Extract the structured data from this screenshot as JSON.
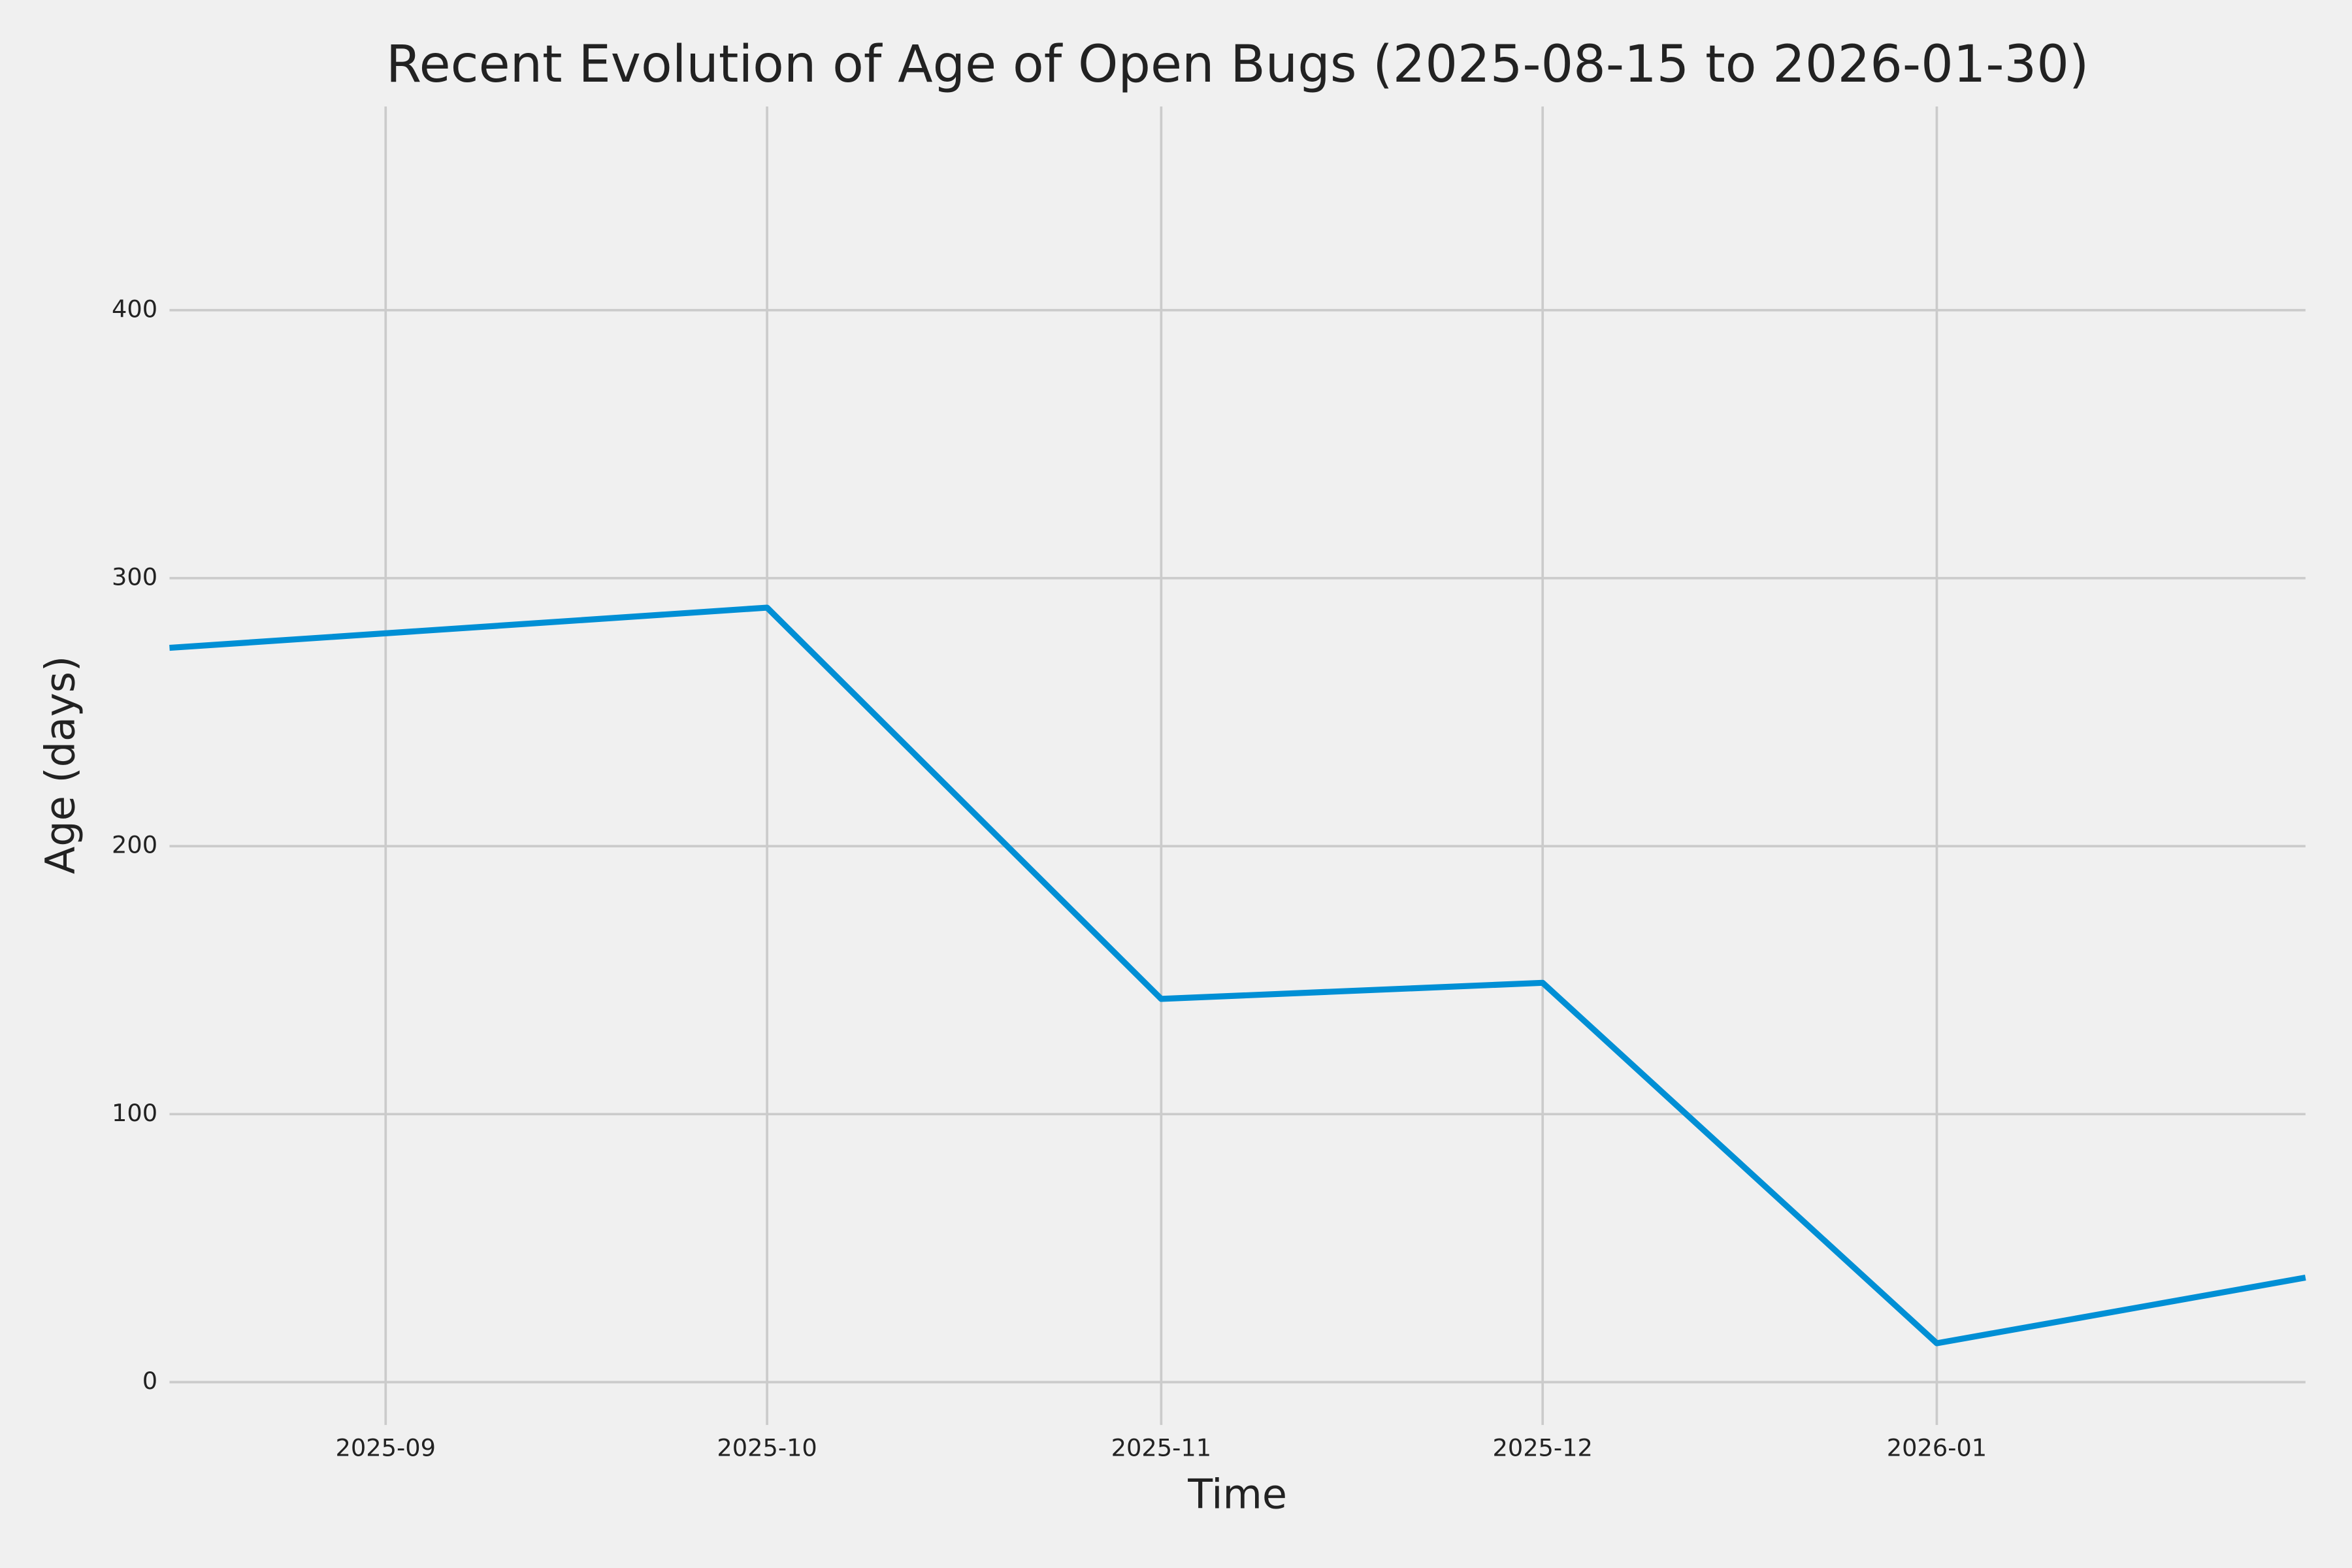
{
  "chart_data": {
    "type": "line",
    "title": "Recent Evolution of Age of Open Bugs (2025-08-15 to 2026-01-30)",
    "x_label": "Time",
    "y_label": "Age (days)",
    "x": [
      "2025-08-15",
      "2025-10-01",
      "2025-11-01",
      "2025-12-01",
      "2026-01-01",
      "2026-01-30"
    ],
    "series": [
      {
        "name": "Age",
        "color": "#008fd5",
        "values": [
          274,
          289,
          143,
          149,
          14.5,
          39
        ]
      }
    ],
    "xlim": [
      "2025-08-15",
      "2026-01-30"
    ],
    "xticks": [
      "2025-09",
      "2025-10",
      "2025-11",
      "2025-12",
      "2026-01"
    ],
    "ylim": [
      -16,
      476
    ],
    "yticks": [
      0,
      100,
      200,
      300,
      400
    ],
    "grid": true
  }
}
